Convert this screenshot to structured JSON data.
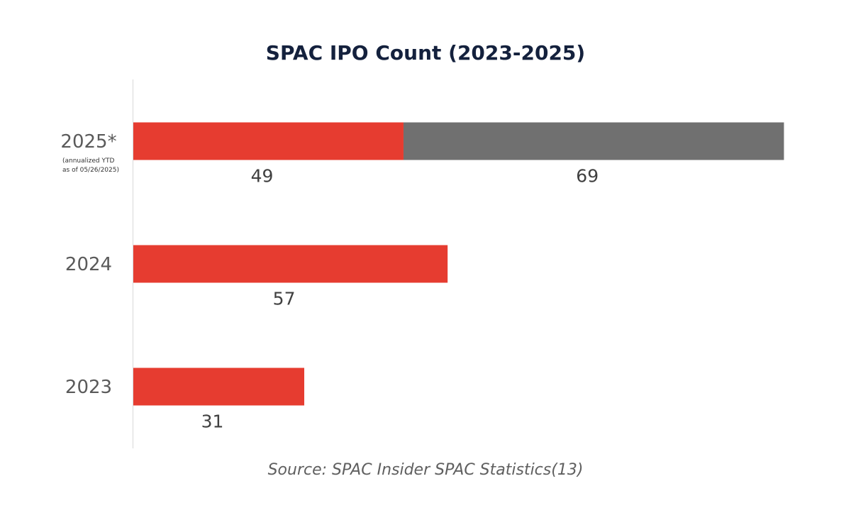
{
  "chart_data": {
    "type": "bar",
    "orientation": "horizontal",
    "stacked": true,
    "title": "SPAC IPO Count (2023-2025)",
    "categories": [
      "2025*",
      "2024",
      "2023"
    ],
    "category_notes": [
      "(annualized YTD",
      "as of 05/26/2025)"
    ],
    "series": [
      {
        "values": [
          49,
          57,
          31
        ],
        "color": "#e63c30"
      },
      {
        "values": [
          69,
          null,
          null
        ],
        "color": "#707070"
      }
    ],
    "xlim": [
      0,
      120
    ],
    "grid": false,
    "source": "Source: SPAC Insider SPAC Statistics(13)"
  }
}
